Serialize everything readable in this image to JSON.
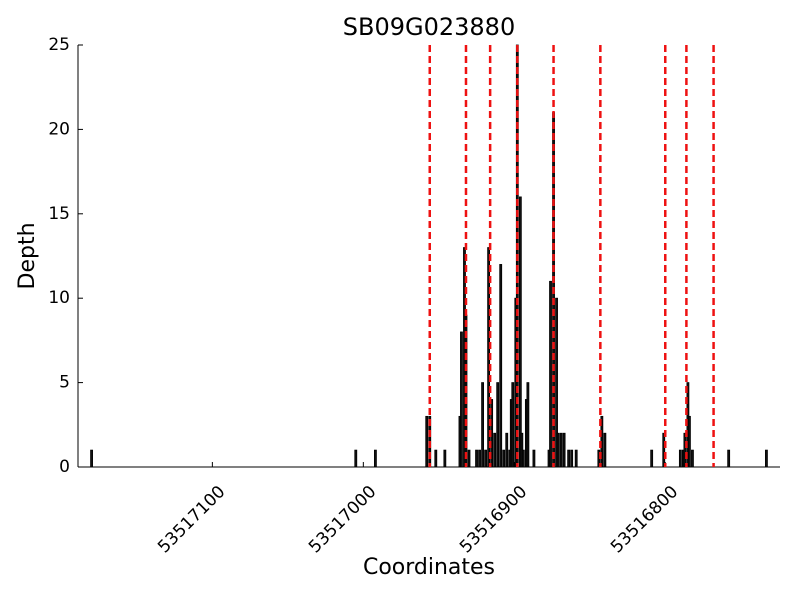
{
  "chart_data": {
    "type": "bar",
    "title": "SB09G023880",
    "xlabel": "Coordinates",
    "ylabel": "Depth",
    "x": [
      53517180,
      53517005,
      53516992,
      53516958,
      53516956,
      53516952,
      53516946,
      53516936,
      53516935,
      53516933,
      53516932,
      53516930,
      53516925,
      53516923,
      53516921,
      53516919,
      53516917,
      53516915,
      53516913,
      53516911,
      53516909,
      53516907,
      53516905,
      53516903,
      53516902,
      53516901,
      53516899,
      53516898,
      53516896,
      53516895,
      53516894,
      53516892,
      53516891,
      53516887,
      53516877,
      53516876,
      53516874,
      53516872,
      53516871,
      53516869,
      53516867,
      53516864,
      53516862,
      53516859,
      53516844,
      53516842,
      53516840,
      53516809,
      53516801,
      53516790,
      53516788,
      53516787,
      53516785,
      53516784,
      53516782,
      53516758,
      53516733
    ],
    "values": [
      1,
      1,
      1,
      3,
      3,
      1,
      1,
      3,
      8,
      13,
      9,
      1,
      1,
      1,
      5,
      1,
      13,
      4,
      2,
      5,
      12,
      1,
      2,
      1,
      4,
      5,
      10,
      25,
      16,
      2,
      1,
      4,
      5,
      1,
      1,
      11,
      21,
      10,
      2,
      2,
      2,
      1,
      1,
      1,
      1,
      3,
      2,
      1,
      2,
      1,
      1,
      2,
      5,
      3,
      1,
      1,
      1
    ],
    "color": "#111111",
    "vlines": [
      53516956,
      53516932,
      53516916,
      53516898,
      53516874,
      53516843,
      53516800,
      53516786,
      53516768
    ],
    "vline_color": "#ee1111",
    "xlim": [
      53517189,
      53516724
    ],
    "xticks": [
      53517100,
      53517000,
      53516900,
      53516800
    ],
    "ylim": [
      0,
      25
    ],
    "yticks": [
      0,
      5,
      10,
      15,
      20,
      25
    ]
  }
}
